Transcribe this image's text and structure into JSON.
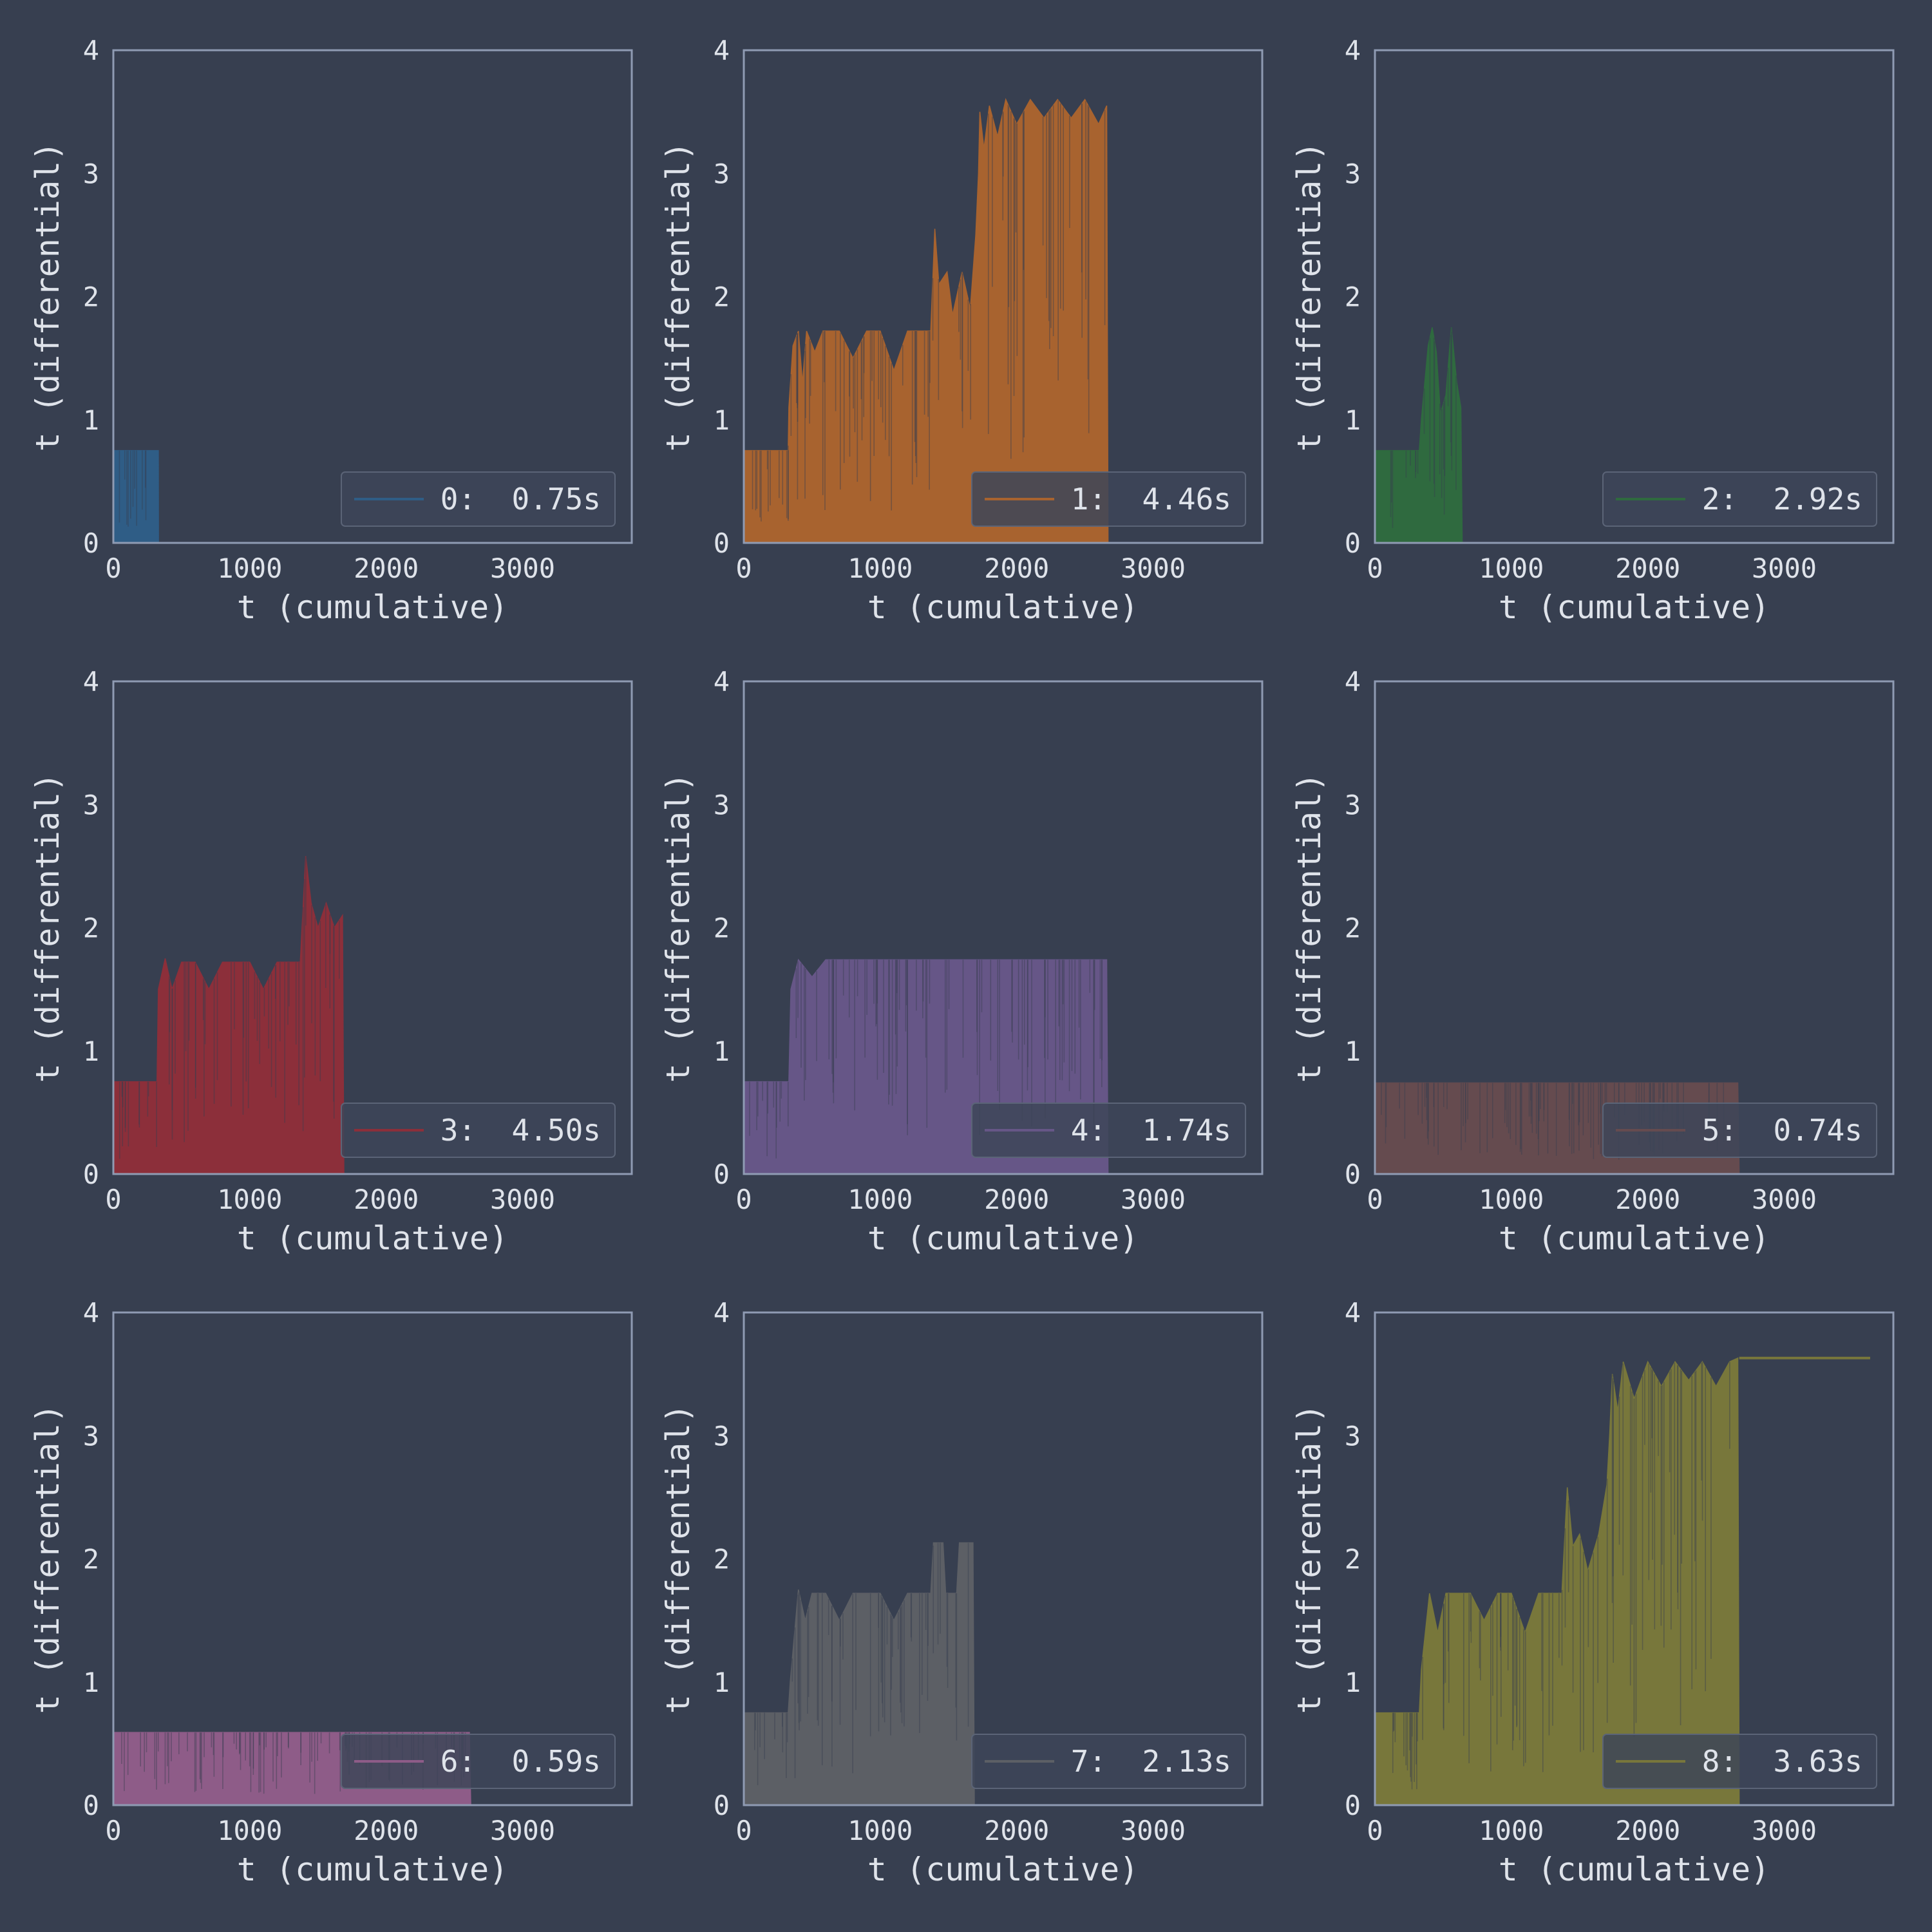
{
  "theme": {
    "background": "#373f50",
    "frame_color": "#8f9bb3",
    "text_color": "#dfe3ea",
    "legend_bg": "#3d4558",
    "legend_border": "#5b6477"
  },
  "axes_common": {
    "xlabel": "t (cumulative)",
    "ylabel": "t (differential)",
    "xlim": [
      0,
      3800
    ],
    "ylim": [
      0,
      4
    ],
    "xticks": [
      0,
      1000,
      2000,
      3000
    ],
    "yticks": [
      0,
      1,
      2,
      3,
      4
    ]
  },
  "chart_data": [
    {
      "type": "area",
      "legend": "0:  0.75s",
      "color": "#2f5d86",
      "xlabel": "t (cumulative)",
      "ylabel": "t (differential)",
      "xlim": [
        0,
        3800
      ],
      "ylim": [
        0,
        4
      ],
      "grid": false,
      "legend_position": "lower right",
      "envelope": [
        [
          0,
          0.75
        ],
        [
          330,
          0.75
        ],
        [
          331,
          0
        ]
      ]
    },
    {
      "type": "area",
      "legend": "1:  4.46s",
      "color": "#a8632f",
      "xlabel": "t (cumulative)",
      "ylabel": "t (differential)",
      "xlim": [
        0,
        3800
      ],
      "ylim": [
        0,
        4
      ],
      "grid": false,
      "legend_position": "lower right",
      "envelope": [
        [
          0,
          0.75
        ],
        [
          325,
          0.75
        ],
        [
          330,
          1.1
        ],
        [
          360,
          1.6
        ],
        [
          400,
          1.72
        ],
        [
          430,
          1.3
        ],
        [
          460,
          1.72
        ],
        [
          520,
          1.55
        ],
        [
          580,
          1.72
        ],
        [
          700,
          1.72
        ],
        [
          800,
          1.5
        ],
        [
          900,
          1.72
        ],
        [
          1000,
          1.72
        ],
        [
          1100,
          1.4
        ],
        [
          1200,
          1.72
        ],
        [
          1370,
          1.72
        ],
        [
          1400,
          2.55
        ],
        [
          1430,
          2.1
        ],
        [
          1490,
          2.2
        ],
        [
          1530,
          1.85
        ],
        [
          1600,
          2.2
        ],
        [
          1660,
          1.9
        ],
        [
          1700,
          2.5
        ],
        [
          1720,
          3.0
        ],
        [
          1730,
          3.5
        ],
        [
          1760,
          3.2
        ],
        [
          1800,
          3.55
        ],
        [
          1860,
          3.3
        ],
        [
          1920,
          3.6
        ],
        [
          2000,
          3.4
        ],
        [
          2100,
          3.6
        ],
        [
          2200,
          3.45
        ],
        [
          2300,
          3.6
        ],
        [
          2400,
          3.45
        ],
        [
          2500,
          3.6
        ],
        [
          2600,
          3.4
        ],
        [
          2660,
          3.55
        ],
        [
          2670,
          0
        ]
      ]
    },
    {
      "type": "area",
      "legend": "2:  2.92s",
      "color": "#2f6a3f",
      "xlabel": "t (cumulative)",
      "ylabel": "t (differential)",
      "xlim": [
        0,
        3800
      ],
      "ylim": [
        0,
        4
      ],
      "grid": false,
      "legend_position": "lower right",
      "envelope": [
        [
          0,
          0.75
        ],
        [
          325,
          0.75
        ],
        [
          340,
          1.0
        ],
        [
          390,
          1.6
        ],
        [
          420,
          1.75
        ],
        [
          450,
          1.55
        ],
        [
          480,
          1.05
        ],
        [
          520,
          1.2
        ],
        [
          560,
          1.75
        ],
        [
          600,
          1.3
        ],
        [
          630,
          1.1
        ],
        [
          640,
          0
        ]
      ]
    },
    {
      "type": "area",
      "legend": "3:  4.50s",
      "color": "#8c2f3a",
      "xlabel": "t (cumulative)",
      "ylabel": "t (differential)",
      "xlim": [
        0,
        3800
      ],
      "ylim": [
        0,
        4
      ],
      "grid": false,
      "legend_position": "lower right",
      "envelope": [
        [
          0,
          0.75
        ],
        [
          320,
          0.75
        ],
        [
          330,
          1.5
        ],
        [
          380,
          1.75
        ],
        [
          430,
          1.5
        ],
        [
          500,
          1.72
        ],
        [
          600,
          1.72
        ],
        [
          700,
          1.5
        ],
        [
          800,
          1.72
        ],
        [
          1000,
          1.72
        ],
        [
          1100,
          1.5
        ],
        [
          1200,
          1.72
        ],
        [
          1370,
          1.72
        ],
        [
          1410,
          2.58
        ],
        [
          1450,
          2.2
        ],
        [
          1500,
          2.0
        ],
        [
          1560,
          2.2
        ],
        [
          1620,
          2.0
        ],
        [
          1680,
          2.1
        ],
        [
          1690,
          0
        ]
      ]
    },
    {
      "type": "area",
      "legend": "4:  1.74s",
      "color": "#665687",
      "xlabel": "t (cumulative)",
      "ylabel": "t (differential)",
      "xlim": [
        0,
        3800
      ],
      "ylim": [
        0,
        4
      ],
      "grid": false,
      "legend_position": "lower right",
      "envelope": [
        [
          0,
          0.75
        ],
        [
          330,
          0.75
        ],
        [
          345,
          1.5
        ],
        [
          400,
          1.74
        ],
        [
          500,
          1.6
        ],
        [
          600,
          1.74
        ],
        [
          2660,
          1.74
        ],
        [
          2670,
          0
        ]
      ]
    },
    {
      "type": "area",
      "legend": "5:  0.74s",
      "color": "#654b4f",
      "xlabel": "t (cumulative)",
      "ylabel": "t (differential)",
      "xlim": [
        0,
        3800
      ],
      "ylim": [
        0,
        4
      ],
      "grid": false,
      "legend_position": "lower right",
      "envelope": [
        [
          0,
          0.74
        ],
        [
          2660,
          0.74
        ],
        [
          2670,
          0
        ]
      ]
    },
    {
      "type": "area",
      "legend": "6:  0.59s",
      "color": "#8e5c88",
      "xlabel": "t (cumulative)",
      "ylabel": "t (differential)",
      "xlim": [
        0,
        3800
      ],
      "ylim": [
        0,
        4
      ],
      "grid": false,
      "legend_position": "lower right",
      "envelope": [
        [
          0,
          0.59
        ],
        [
          2610,
          0.59
        ],
        [
          2620,
          0
        ]
      ]
    },
    {
      "type": "area",
      "legend": "7:  2.13s",
      "color": "#5c5f65",
      "xlabel": "t (cumulative)",
      "ylabel": "t (differential)",
      "xlim": [
        0,
        3800
      ],
      "ylim": [
        0,
        4
      ],
      "grid": false,
      "legend_position": "lower right",
      "envelope": [
        [
          0,
          0.75
        ],
        [
          325,
          0.75
        ],
        [
          340,
          1.0
        ],
        [
          400,
          1.75
        ],
        [
          450,
          1.5
        ],
        [
          500,
          1.72
        ],
        [
          600,
          1.72
        ],
        [
          700,
          1.5
        ],
        [
          800,
          1.72
        ],
        [
          1000,
          1.72
        ],
        [
          1100,
          1.5
        ],
        [
          1200,
          1.72
        ],
        [
          1370,
          1.72
        ],
        [
          1390,
          2.13
        ],
        [
          1460,
          2.13
        ],
        [
          1480,
          1.72
        ],
        [
          1560,
          1.72
        ],
        [
          1580,
          2.13
        ],
        [
          1680,
          2.13
        ],
        [
          1690,
          0
        ]
      ]
    },
    {
      "type": "area",
      "legend": "8:  3.63s",
      "color": "#78773b",
      "xlabel": "t (cumulative)",
      "ylabel": "t (differential)",
      "xlim": [
        0,
        3800
      ],
      "ylim": [
        0,
        4
      ],
      "grid": false,
      "legend_position": "lower right",
      "envelope": [
        [
          0,
          0.75
        ],
        [
          325,
          0.75
        ],
        [
          340,
          1.1
        ],
        [
          400,
          1.72
        ],
        [
          460,
          1.4
        ],
        [
          520,
          1.72
        ],
        [
          700,
          1.72
        ],
        [
          800,
          1.5
        ],
        [
          900,
          1.72
        ],
        [
          1000,
          1.72
        ],
        [
          1100,
          1.4
        ],
        [
          1200,
          1.72
        ],
        [
          1370,
          1.72
        ],
        [
          1410,
          2.58
        ],
        [
          1450,
          2.1
        ],
        [
          1500,
          2.2
        ],
        [
          1560,
          1.9
        ],
        [
          1640,
          2.2
        ],
        [
          1700,
          2.6
        ],
        [
          1720,
          3.0
        ],
        [
          1740,
          3.5
        ],
        [
          1780,
          3.2
        ],
        [
          1820,
          3.6
        ],
        [
          1900,
          3.3
        ],
        [
          2000,
          3.6
        ],
        [
          2100,
          3.4
        ],
        [
          2200,
          3.6
        ],
        [
          2300,
          3.45
        ],
        [
          2400,
          3.6
        ],
        [
          2500,
          3.4
        ],
        [
          2600,
          3.6
        ],
        [
          2660,
          3.63
        ],
        [
          2670,
          0
        ]
      ],
      "line_tail": [
        [
          2670,
          3.63
        ],
        [
          3630,
          3.63
        ]
      ]
    }
  ]
}
